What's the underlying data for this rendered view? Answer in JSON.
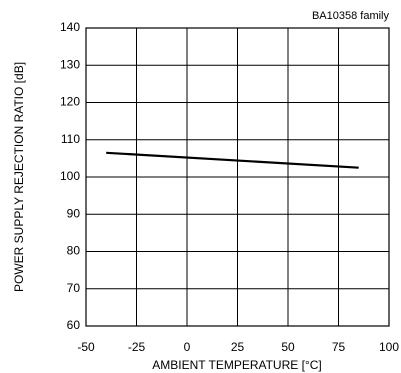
{
  "chart_data": {
    "type": "line",
    "annotation": "BA10358  family",
    "xlabel": "AMBIENT TEMPERATURE [°C]",
    "ylabel": "POWER SUPPLY REJECTION RATIO [dB]",
    "x": [
      -40,
      85
    ],
    "series": [
      {
        "color": "#000000",
        "values": [
          106.5,
          102.5
        ]
      }
    ],
    "xlim": [
      -50,
      100
    ],
    "xticks": [
      -50,
      -25,
      0,
      25,
      50,
      75,
      100
    ],
    "ylim": [
      60,
      140
    ],
    "yticks": [
      60,
      70,
      80,
      90,
      100,
      110,
      120,
      130,
      140
    ],
    "grid": true
  }
}
